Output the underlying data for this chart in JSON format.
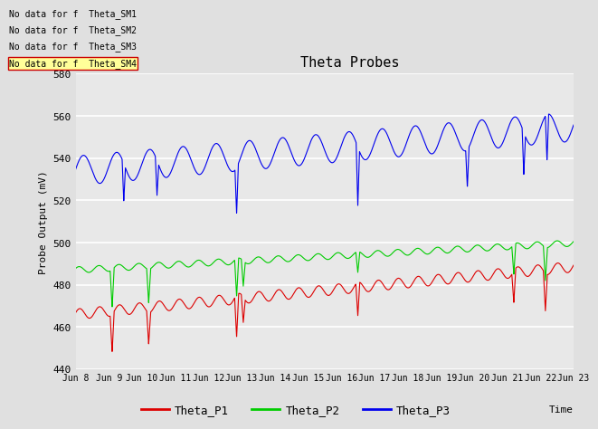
{
  "title": "Theta Probes",
  "ylabel": "Probe Output (mV)",
  "xlabel": "Time",
  "ylim": [
    440,
    580
  ],
  "yticks": [
    440,
    460,
    480,
    500,
    520,
    540,
    560,
    580
  ],
  "xtick_labels": [
    "Jun 8",
    "Jun 9",
    "Jun 10",
    "Jun 11",
    "Jun 12",
    "Jun 13",
    "Jun 14",
    "Jun 15",
    "Jun 16",
    "Jun 17",
    "Jun 18",
    "Jun 19",
    "Jun 20",
    "Jun 21",
    "Jun 22",
    "Jun 23"
  ],
  "bg_color": "#e0e0e0",
  "plot_bg_color": "#e8e8e8",
  "grid_color": "#ffffff",
  "line_colors": {
    "P1": "#dd0000",
    "P2": "#00cc00",
    "P3": "#0000ee"
  },
  "legend_labels": [
    "Theta_P1",
    "Theta_P2",
    "Theta_P3"
  ],
  "no_data_texts": [
    "No data for f  Theta_SM1",
    "No data for f  Theta_SM2",
    "No data for f  Theta_SM3",
    "No data for f  Theta_SM4"
  ],
  "no_data_box_color": "#ffff99",
  "no_data_box_edge": "#cc0000"
}
